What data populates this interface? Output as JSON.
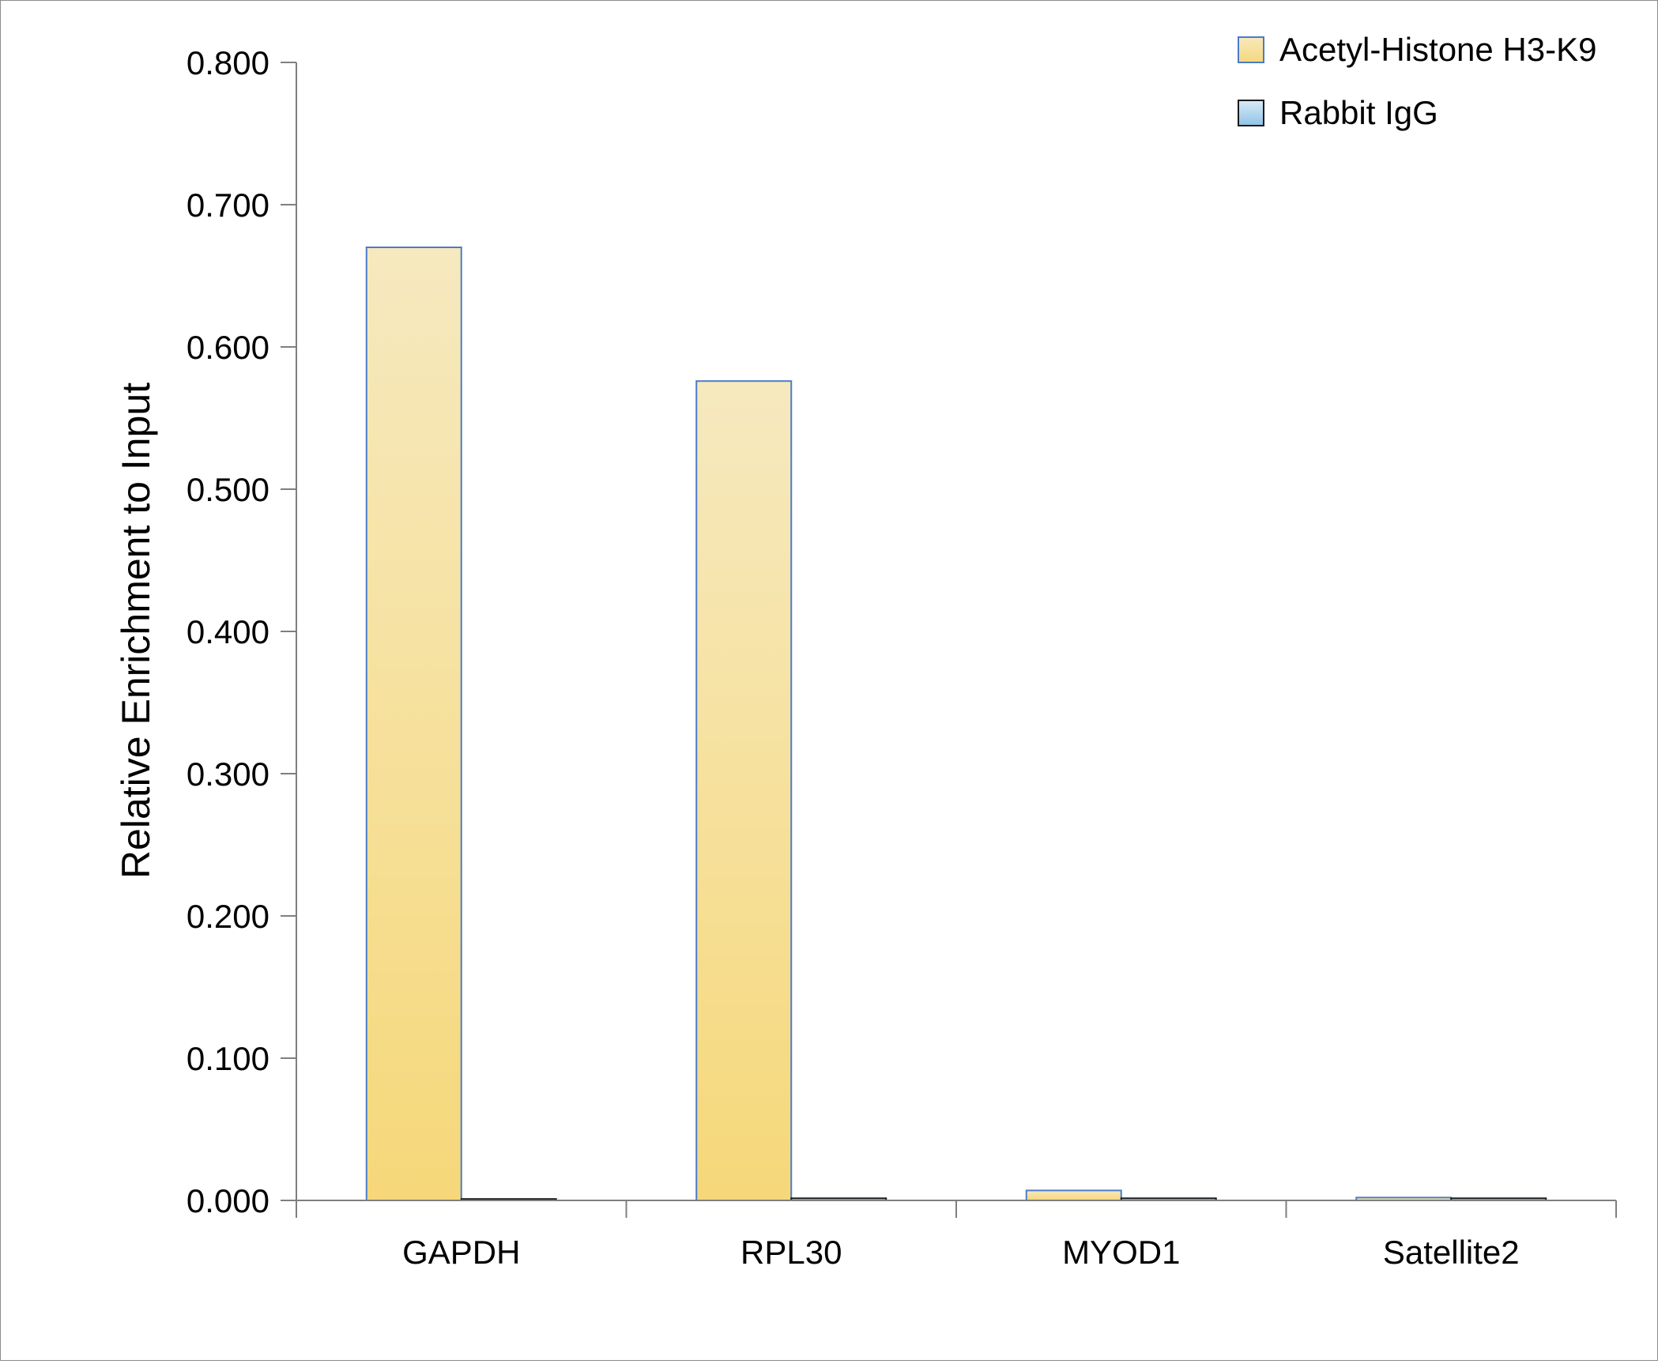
{
  "chart_data": {
    "type": "bar",
    "title": "",
    "xlabel": "",
    "ylabel": "Relative Enrichment to Input",
    "ylim": [
      0,
      0.8
    ],
    "yticks": [
      "0.000",
      "0.100",
      "0.200",
      "0.300",
      "0.400",
      "0.500",
      "0.600",
      "0.700",
      "0.800"
    ],
    "categories": [
      "GAPDH",
      "RPL30",
      "MYOD1",
      "Satellite2"
    ],
    "series": [
      {
        "name": "Acetyl-Histone H3-K9",
        "values": [
          0.67,
          0.576,
          0.007,
          0.002
        ],
        "color_top": "#f6e9bf",
        "color_bottom": "#f6d87a",
        "stroke": "#4a7cc9"
      },
      {
        "name": "Rabbit IgG",
        "values": [
          0.001,
          0.0015,
          0.0015,
          0.0015
        ],
        "color_top": "#d9ecf8",
        "color_bottom": "#8fc2e6",
        "stroke": "#1a1a1a"
      }
    ],
    "grid": false,
    "legend_position": "top-right"
  }
}
